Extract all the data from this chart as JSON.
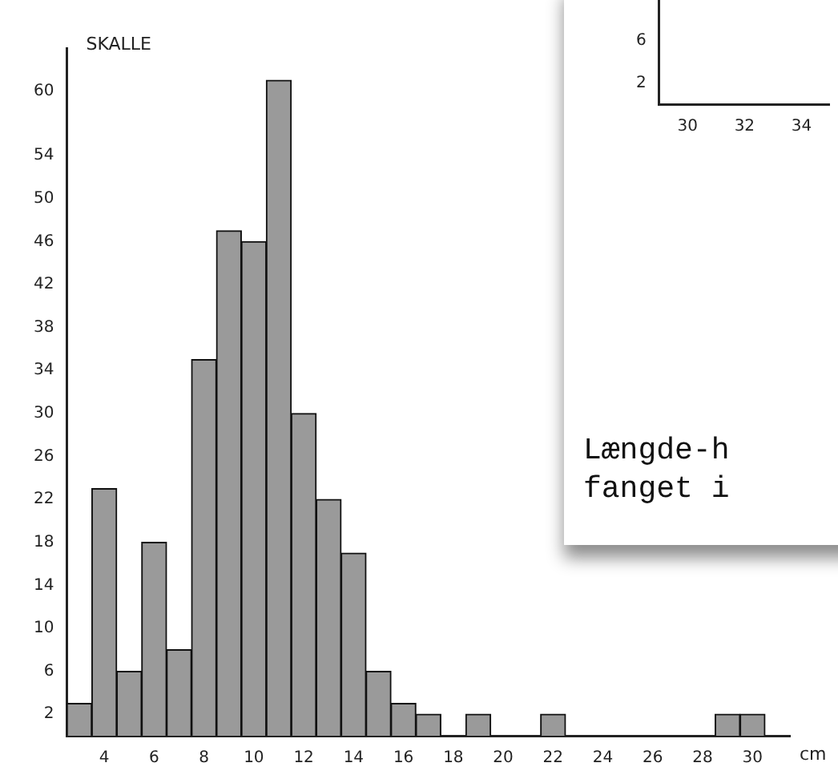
{
  "chart_data": [
    {
      "type": "histogram",
      "title": "SKALLE",
      "xlabel": "cm",
      "color": "#9a9a9a",
      "bins": [
        2.5,
        3.5,
        4.5,
        5.5,
        6.5,
        7.5,
        8.5,
        9.5,
        10.5,
        11.5,
        12.5,
        13.5,
        14.5,
        15.5,
        16.5,
        17.5,
        18.5,
        19.5,
        20.5,
        21.5,
        22.5,
        23.5,
        24.5,
        25.5,
        26.5,
        27.5,
        28.5,
        29.5,
        30.5
      ],
      "values": [
        3,
        23,
        6,
        18,
        8,
        35,
        47,
        46,
        61,
        30,
        22,
        17,
        6,
        3,
        2,
        0,
        2,
        0,
        0,
        2,
        0,
        0,
        0,
        0,
        0,
        0,
        2,
        2
      ],
      "xlim": [
        2.5,
        31.5
      ],
      "xticks": [
        4,
        6,
        8,
        10,
        12,
        14,
        16,
        18,
        20,
        22,
        24,
        26,
        28,
        30
      ],
      "ylim": [
        0,
        64
      ],
      "yticks": [
        2,
        6,
        10,
        14,
        18,
        22,
        26,
        30,
        34,
        38,
        42,
        46,
        50,
        54,
        60
      ],
      "grid": false,
      "legend": false
    },
    {
      "type": "scatter",
      "xlim": [
        29,
        35
      ],
      "xticks": [
        30,
        32,
        34
      ],
      "ylim": [
        0,
        10
      ],
      "yticks": [
        2,
        6
      ],
      "annotations": [
        "Længde-h",
        "fanget i"
      ]
    }
  ]
}
